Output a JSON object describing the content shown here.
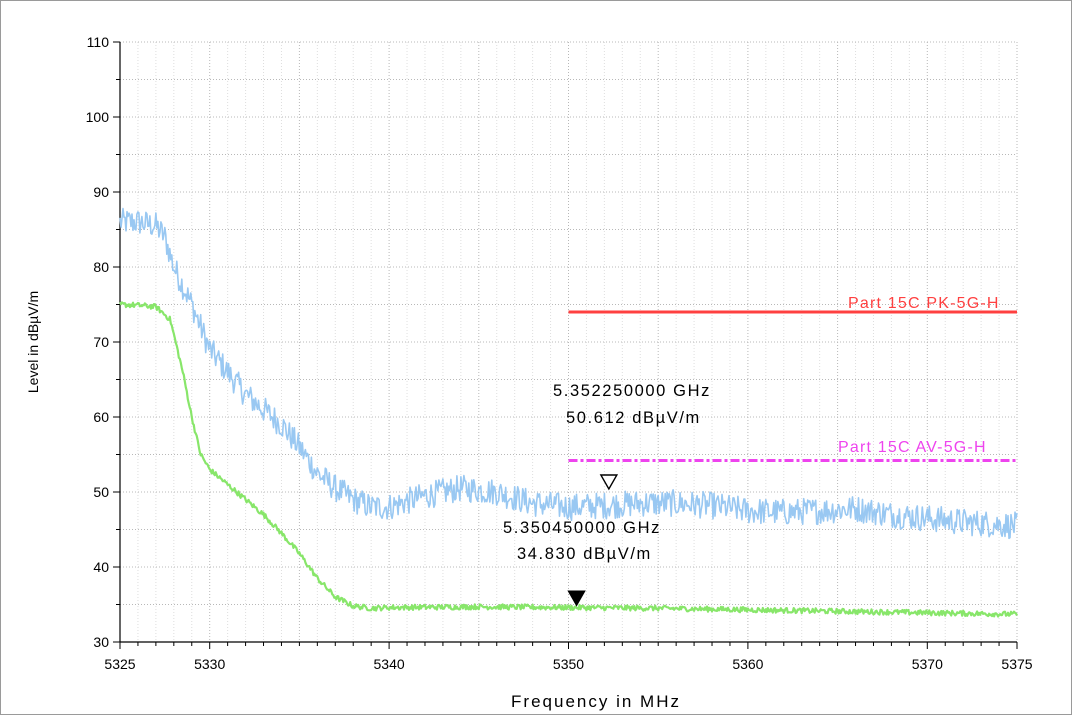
{
  "chart_data": {
    "type": "line",
    "xlabel": "Frequency in MHz",
    "ylabel": "Level in dBµV/m",
    "xlim": [
      5325,
      5375
    ],
    "ylim": [
      30,
      110
    ],
    "x_ticks": [
      5325,
      5330,
      5340,
      5350,
      5360,
      5370,
      5375
    ],
    "y_ticks": [
      30,
      40,
      50,
      60,
      70,
      80,
      90,
      100,
      110
    ],
    "grid": true,
    "series": [
      {
        "color": "#99c8f2",
        "noise": 1.8,
        "x": [
          5325,
          5326,
          5327,
          5327.5,
          5328,
          5329,
          5330,
          5331,
          5332,
          5333,
          5334,
          5335,
          5336,
          5337,
          5338,
          5339,
          5340,
          5342,
          5344,
          5346,
          5348,
          5350,
          5352,
          5354,
          5356,
          5358,
          5360,
          5362,
          5364,
          5366,
          5368,
          5370,
          5372,
          5375
        ],
        "y": [
          86,
          86,
          85.5,
          84,
          80,
          75,
          69,
          66,
          63,
          61,
          59,
          56,
          52.5,
          50.5,
          49,
          48,
          48,
          49.5,
          50.5,
          50,
          48.5,
          48,
          48.2,
          48.5,
          48.5,
          48.2,
          47.5,
          47.3,
          47.5,
          47.8,
          47,
          46.5,
          46,
          45.5
        ]
      },
      {
        "color": "#88e66a",
        "noise": 0.35,
        "x": [
          5325,
          5326,
          5327,
          5327.8,
          5328.5,
          5329,
          5329.5,
          5330,
          5331,
          5332,
          5333,
          5334,
          5335,
          5336,
          5337,
          5338,
          5339,
          5340,
          5345,
          5350,
          5355,
          5360,
          5365,
          5370,
          5375
        ],
        "y": [
          75,
          74.9,
          74.7,
          73,
          66,
          60,
          55,
          53,
          51,
          49,
          47,
          44.5,
          41.8,
          38.5,
          36,
          34.8,
          34.5,
          34.6,
          34.7,
          34.6,
          34.5,
          34.3,
          34.1,
          33.9,
          33.7
        ]
      }
    ],
    "limit_lines": [
      {
        "name": "Part 15C PK-5G-H",
        "x": [
          5350,
          5375
        ],
        "y": 74,
        "color": "#ff4040",
        "style": "solid"
      },
      {
        "name": "Part 15C  AV-5G-H",
        "x": [
          5350,
          5375
        ],
        "y": 54.2,
        "color": "#ee44ee",
        "style": "dashdot"
      }
    ],
    "markers": [
      {
        "x": 5352.25,
        "y": 51.2,
        "kind": "open",
        "freq_text": "5.352250000 GHz",
        "level_text": "50.612 dBµV/m"
      },
      {
        "x": 5350.45,
        "y": 35.7,
        "kind": "filled",
        "freq_text": "5.350450000 GHz",
        "level_text": "34.830 dBµV/m"
      }
    ]
  }
}
